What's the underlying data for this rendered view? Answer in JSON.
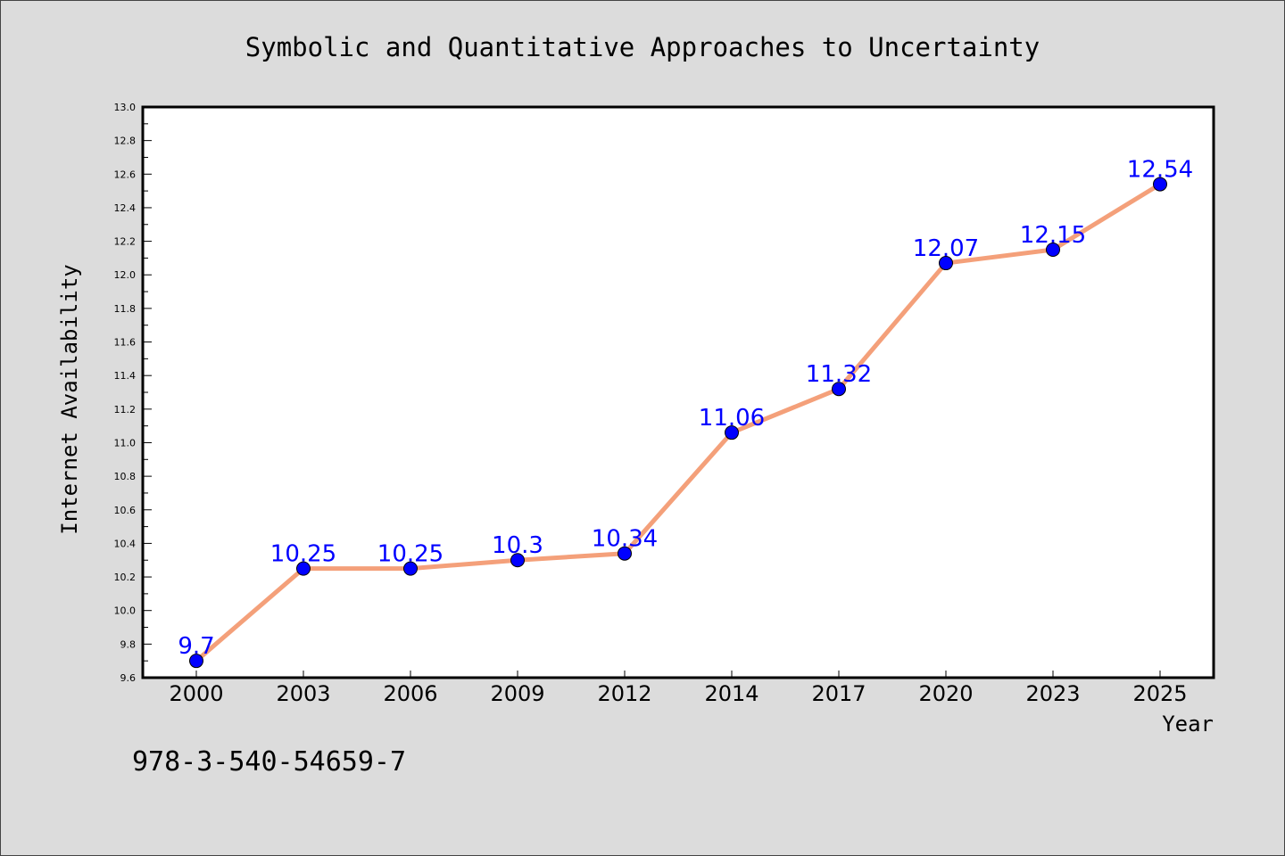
{
  "chart_data": {
    "type": "line",
    "title": "Symbolic and Quantitative Approaches to Uncertainty",
    "xlabel": "Year",
    "ylabel": "Internet Availability",
    "categories": [
      "2000",
      "2003",
      "2006",
      "2009",
      "2012",
      "2014",
      "2017",
      "2020",
      "2023",
      "2025"
    ],
    "series": [
      {
        "values": [
          9.7,
          10.25,
          10.25,
          10.3,
          10.34,
          11.06,
          11.32,
          12.07,
          12.15,
          12.54
        ],
        "labels": [
          "9.7",
          "10.25",
          "10.25",
          "10.3",
          "10.34",
          "11.06",
          "11.32",
          "12.07",
          "12.15",
          "12.54"
        ],
        "line_color": "#f4a07a",
        "marker_color": "#0000ff"
      }
    ],
    "ylim": [
      9.6,
      13.0
    ],
    "yticks": [
      "9.6",
      "9.8",
      "10.0",
      "10.2",
      "10.4",
      "10.6",
      "10.8",
      "11.0",
      "11.2",
      "11.4",
      "11.6",
      "11.8",
      "12.0",
      "12.2",
      "12.4",
      "12.6",
      "12.8",
      "13.0"
    ],
    "grid": false,
    "legend": "none"
  },
  "footer": {
    "isbn": "978-3-540-54659-7"
  },
  "colors": {
    "background": "#dcdcdc",
    "plot_background": "#ffffff",
    "line": "#f4a07a",
    "marker": "#0000ff",
    "data_label": "#0000ff"
  }
}
